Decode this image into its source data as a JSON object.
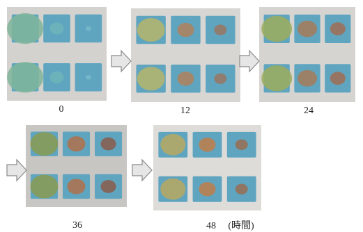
{
  "panels": [
    {
      "label": "0"
    },
    {
      "label": "12"
    },
    {
      "label": "24"
    },
    {
      "label": "36"
    },
    {
      "label": "48"
    }
  ],
  "unit": "(時間)"
}
